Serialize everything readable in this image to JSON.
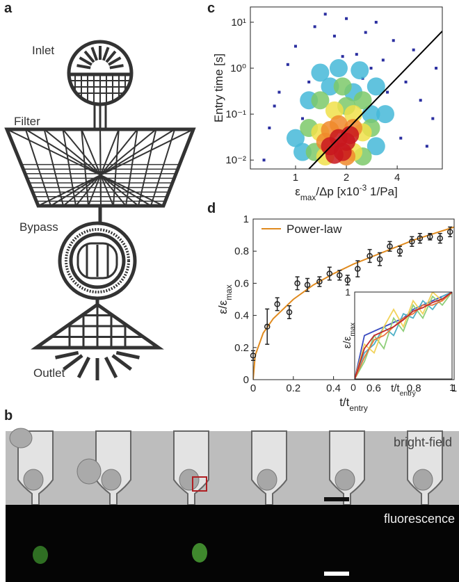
{
  "panel_labels": [
    "a",
    "b",
    "c",
    "d"
  ],
  "diagram": {
    "labels": [
      "Inlet",
      "Filter",
      "Bypass",
      "Outlet"
    ]
  },
  "images": {
    "labels": [
      "bright-field",
      "fluorescence"
    ]
  },
  "chart_data": [
    {
      "type": "scatter",
      "ylabel": [
        {
          "text": "Entry time [s]"
        }
      ],
      "xlabel": [
        {
          "text": "ε"
        },
        {
          "sub": "max"
        },
        {
          "text": "/Δp [x10"
        },
        {
          "sup": "-3"
        },
        {
          "text": " 1/Pa]"
        }
      ],
      "xlog": true,
      "ylog": true,
      "xlim": [
        0.54,
        7.4
      ],
      "ylim": [
        0.0064,
        21.5
      ],
      "xticks": [
        1,
        2,
        4
      ],
      "yticks": [
        {
          "value": 0.01,
          "label": "10⁻²"
        },
        {
          "value": 0.1,
          "label": "10⁻¹"
        },
        {
          "value": 1,
          "label": "10⁰"
        },
        {
          "value": 10,
          "label": "10¹"
        }
      ],
      "series": [
        {
          "color": "#2b2fa0",
          "style": "points",
          "marker": "square",
          "x": [
            0.7,
            0.8,
            0.9,
            1.0,
            1.1,
            1.3,
            1.5,
            1.7,
            2.0,
            2.3,
            2.6,
            3.0,
            3.3,
            3.8,
            4.5,
            5.5,
            6.5,
            6.8,
            5,
            0.65,
            0.75,
            1.2,
            4.2,
            3.5,
            2.8,
            6,
            1.9,
            2.5
          ],
          "values": [
            0.05,
            0.3,
            1.2,
            3,
            0.08,
            8,
            15,
            5,
            12,
            2,
            6,
            10,
            1.5,
            4,
            0.5,
            0.2,
            0.08,
            1,
            2.5,
            0.01,
            0.15,
            0.5,
            0.03,
            0.3,
            1,
            0.02,
            1.8,
            0.6
          ]
        },
        {
          "color": "#45b8d8",
          "style": "points",
          "marker": "blob",
          "x": [
            1.0,
            1.2,
            1.4,
            1.8,
            2.4,
            3.0,
            3.4,
            3.0,
            1.1,
            2.2,
            1.6,
            2.8
          ],
          "values": [
            0.03,
            0.2,
            0.8,
            1,
            0.9,
            0.4,
            0.1,
            0.02,
            0.015,
            0.3,
            0.4,
            0.1
          ]
        },
        {
          "color": "#7cc96a",
          "style": "points",
          "marker": "blob",
          "x": [
            1.2,
            1.4,
            1.9,
            2.5,
            2.8,
            1.3,
            2.0,
            2.5
          ],
          "values": [
            0.05,
            0.2,
            0.4,
            0.2,
            0.05,
            0.015,
            0.15,
            0.012
          ]
        },
        {
          "color": "#f0e04a",
          "style": "points",
          "marker": "blob",
          "x": [
            1.4,
            1.7,
            2.2,
            2.5,
            1.5,
            2.2
          ],
          "values": [
            0.04,
            0.12,
            0.1,
            0.04,
            0.012,
            0.015
          ]
        },
        {
          "color": "#f08a2c",
          "style": "points",
          "marker": "blob",
          "x": [
            1.5,
            1.8,
            2.2,
            2.0,
            1.6
          ],
          "values": [
            0.025,
            0.06,
            0.05,
            0.012,
            0.045
          ]
        },
        {
          "color": "#c8161d",
          "style": "points",
          "marker": "blob",
          "x": [
            1.6,
            1.8,
            2.0,
            1.9,
            1.7,
            2.1
          ],
          "values": [
            0.02,
            0.03,
            0.025,
            0.015,
            0.013,
            0.035
          ]
        },
        {
          "color": "#000000",
          "style": "line",
          "x": [
            1.2,
            7.4
          ],
          "values": [
            0.0064,
            6.4
          ]
        }
      ]
    },
    {
      "type": "scatter",
      "ylabel": [
        {
          "text": "ε/ε"
        },
        {
          "sub": "max"
        }
      ],
      "xlabel": [
        {
          "text": "t/t"
        },
        {
          "sub": "entry"
        }
      ],
      "xlim": [
        0,
        1
      ],
      "ylim": [
        0,
        1
      ],
      "xticks": [
        0,
        0.2,
        0.4,
        0.6,
        0.8,
        1
      ],
      "yticks": [
        0,
        0.2,
        0.4,
        0.6,
        0.8,
        1
      ],
      "legend": "upper left",
      "series": [
        {
          "color": "#222222",
          "style": "points",
          "marker": "circle",
          "x": [
            0,
            0.07,
            0.12,
            0.18,
            0.22,
            0.27,
            0.33,
            0.38,
            0.43,
            0.47,
            0.52,
            0.58,
            0.63,
            0.68,
            0.73,
            0.79,
            0.83,
            0.88,
            0.93,
            0.98
          ],
          "values": [
            0.15,
            0.33,
            0.47,
            0.42,
            0.6,
            0.59,
            0.61,
            0.66,
            0.65,
            0.62,
            0.69,
            0.77,
            0.75,
            0.83,
            0.8,
            0.86,
            0.88,
            0.89,
            0.88,
            0.92
          ],
          "errors": [
            0.03,
            0.11,
            0.04,
            0.04,
            0.04,
            0.04,
            0.03,
            0.04,
            0.03,
            0.03,
            0.05,
            0.04,
            0.04,
            0.03,
            0.03,
            0.03,
            0.03,
            0.02,
            0.03,
            0.03
          ]
        },
        {
          "name": "Power-law",
          "color": "#e08a1e",
          "style": "line",
          "x": [
            0,
            0.01,
            0.05,
            0.1,
            0.2,
            0.3,
            0.4,
            0.5,
            0.6,
            0.7,
            0.8,
            0.9,
            1.0
          ],
          "values": [
            0,
            0.15,
            0.29,
            0.38,
            0.5,
            0.59,
            0.66,
            0.72,
            0.77,
            0.82,
            0.87,
            0.91,
            0.95
          ]
        }
      ]
    },
    {
      "type": "line",
      "ylabel": [
        {
          "text": "ε/ε"
        },
        {
          "sub": "max"
        }
      ],
      "xlabel": [
        {
          "text": "t/t"
        },
        {
          "sub": "entry"
        }
      ],
      "xlim": [
        0,
        1
      ],
      "ylim": [
        0,
        1
      ],
      "xticks": [
        0,
        1
      ],
      "yticks": [
        1
      ],
      "series": [
        {
          "color": "#3b4cc0",
          "style": "line",
          "x": [
            0,
            0.1,
            0.2,
            0.3,
            0.4,
            0.5,
            0.6,
            0.7,
            0.8,
            0.9,
            1
          ],
          "values": [
            0,
            0.5,
            0.55,
            0.6,
            0.65,
            0.7,
            0.8,
            0.85,
            0.9,
            0.95,
            1
          ]
        },
        {
          "color": "#4fb0c6",
          "style": "line",
          "x": [
            0,
            0.1,
            0.2,
            0.3,
            0.4,
            0.5,
            0.6,
            0.7,
            0.8,
            0.9,
            1
          ],
          "values": [
            0,
            0.3,
            0.4,
            0.6,
            0.5,
            0.75,
            0.7,
            0.9,
            0.8,
            0.95,
            1
          ]
        },
        {
          "color": "#8fcf7a",
          "style": "line",
          "x": [
            0,
            0.1,
            0.2,
            0.3,
            0.4,
            0.5,
            0.6,
            0.7,
            0.8,
            0.9,
            1
          ],
          "values": [
            0,
            0.2,
            0.5,
            0.35,
            0.7,
            0.55,
            0.85,
            0.7,
            0.95,
            0.85,
            1
          ]
        },
        {
          "color": "#f2d35b",
          "style": "line",
          "x": [
            0,
            0.1,
            0.2,
            0.3,
            0.4,
            0.5,
            0.6,
            0.7,
            0.8,
            0.9,
            1
          ],
          "values": [
            0,
            0.4,
            0.3,
            0.6,
            0.8,
            0.6,
            0.9,
            0.75,
            1,
            0.9,
            1
          ]
        },
        {
          "color": "#e8743b",
          "style": "line",
          "x": [
            0,
            0.1,
            0.2,
            0.3,
            0.4,
            0.5,
            0.6,
            0.7,
            0.8,
            0.9,
            1
          ],
          "values": [
            0,
            0.25,
            0.45,
            0.5,
            0.6,
            0.7,
            0.75,
            0.85,
            0.85,
            0.9,
            1
          ]
        },
        {
          "color": "#c0282d",
          "style": "line",
          "x": [
            0,
            0.1,
            0.2,
            0.3,
            0.4,
            0.5,
            0.6,
            0.7,
            0.8,
            0.9,
            1
          ],
          "values": [
            0,
            0.35,
            0.5,
            0.55,
            0.6,
            0.68,
            0.78,
            0.82,
            0.88,
            0.92,
            1
          ]
        }
      ]
    }
  ]
}
